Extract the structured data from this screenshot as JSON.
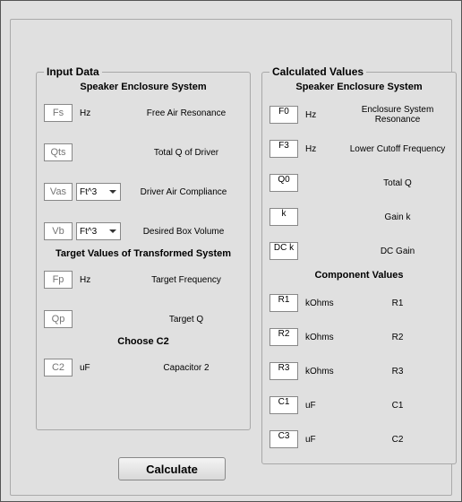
{
  "input_panel": {
    "title": "Input Data",
    "section1": "Speaker Enclosure System",
    "rows1": [
      {
        "name": "fs",
        "unit": "Hz",
        "desc": "Free Air Resonance",
        "label": "Fs",
        "selector": false
      },
      {
        "name": "qts",
        "unit": "",
        "desc": "Total Q of Driver",
        "label": "Qts",
        "selector": false
      },
      {
        "name": "vas",
        "unit": "Ft^3",
        "desc": "Driver Air Compliance",
        "label": "Vas",
        "selector": true
      },
      {
        "name": "vb",
        "unit": "Ft^3",
        "desc": "Desired Box Volume",
        "label": "Vb",
        "selector": true
      }
    ],
    "section2": "Target Values of Transformed System",
    "rows2": [
      {
        "name": "fp",
        "unit": "Hz",
        "desc": "Target Frequency",
        "label": "Fp"
      },
      {
        "name": "qp",
        "unit": "",
        "desc": "Target Q",
        "label": "Qp"
      }
    ],
    "section3": "Choose C2",
    "rows3": [
      {
        "name": "c2",
        "unit": "uF",
        "desc": "Capacitor 2",
        "label": "C2"
      }
    ]
  },
  "calc_panel": {
    "title": "Calculated Values",
    "section1": "Speaker Enclosure System",
    "rows1": [
      {
        "name": "f0",
        "unit": "Hz",
        "desc": "Enclosure System Resonance",
        "label": "F0"
      },
      {
        "name": "f3",
        "unit": "Hz",
        "desc": "Lower Cutoff Frequency",
        "label": "F3"
      },
      {
        "name": "q0",
        "unit": "",
        "desc": "Total Q",
        "label": "Q0"
      },
      {
        "name": "k",
        "unit": "",
        "desc": "Gain k",
        "label": "k"
      },
      {
        "name": "dck",
        "unit": "",
        "desc": "DC Gain",
        "label": "DC k"
      }
    ],
    "section2": "Component Values",
    "rows2": [
      {
        "name": "r1",
        "unit": "kOhms",
        "desc": "R1",
        "label": "R1"
      },
      {
        "name": "r2",
        "unit": "kOhms",
        "desc": "R2",
        "label": "R2"
      },
      {
        "name": "r3",
        "unit": "kOhms",
        "desc": "R3",
        "label": "R3"
      },
      {
        "name": "c1",
        "unit": "uF",
        "desc": "C1",
        "label": "C1"
      },
      {
        "name": "c3",
        "unit": "uF",
        "desc": "C2",
        "label": "C3"
      }
    ]
  },
  "button": {
    "label": "Calculate"
  }
}
